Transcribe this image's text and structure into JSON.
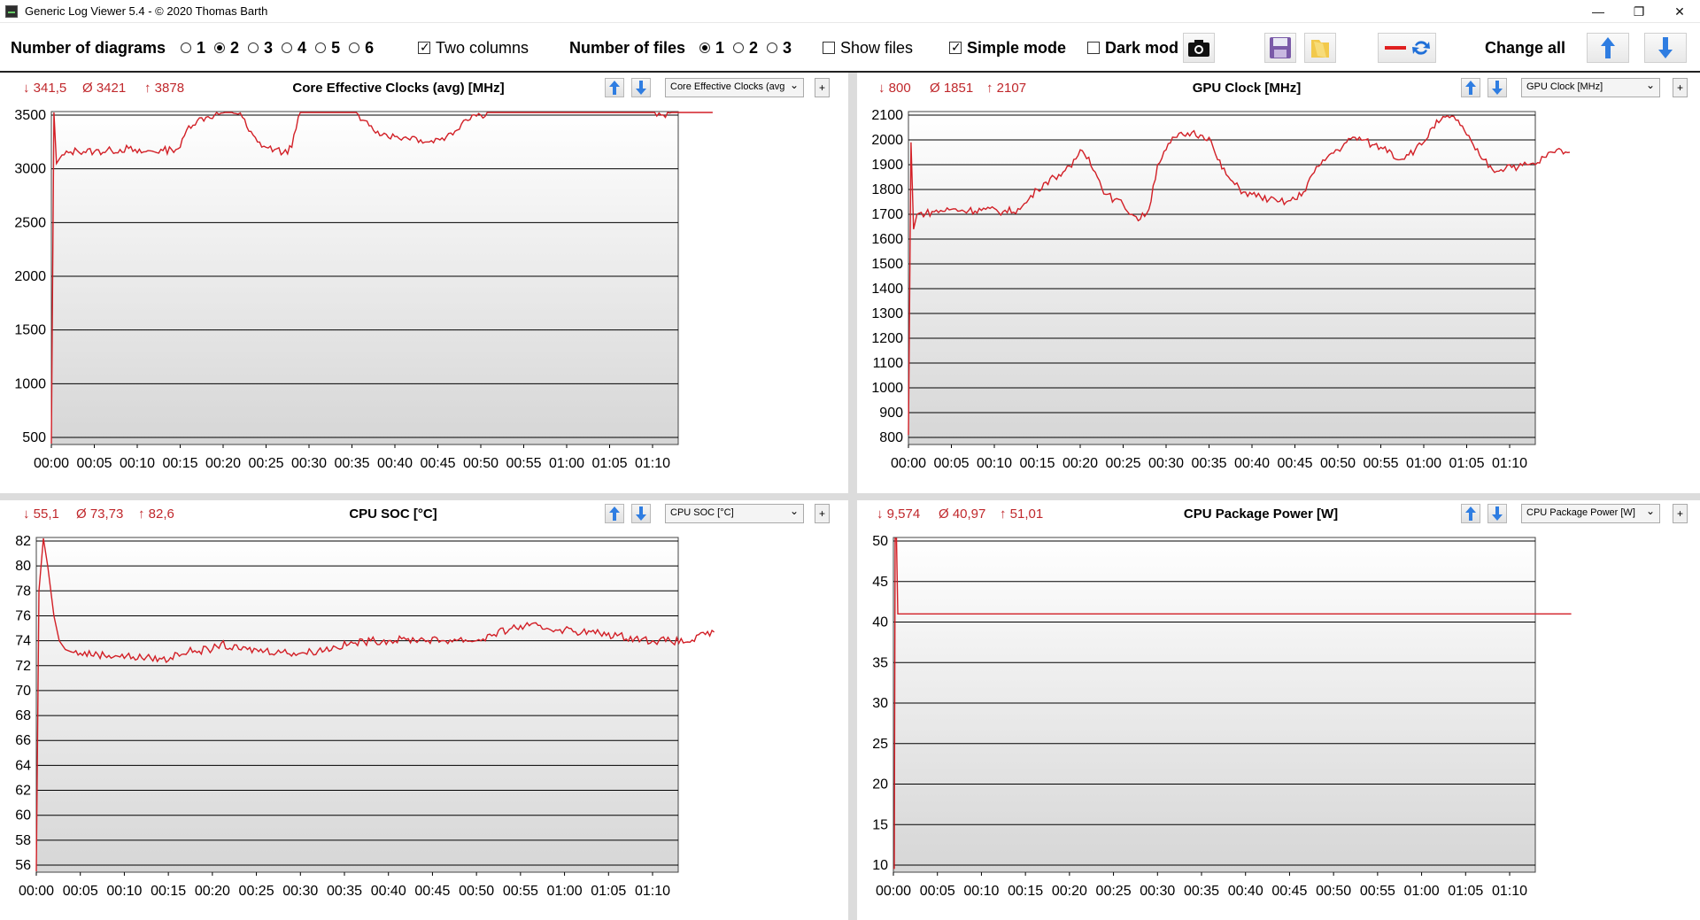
{
  "window": {
    "title": "Generic Log Viewer 5.4 - © 2020 Thomas Barth",
    "minimize": "—",
    "restore": "❐",
    "close": "✕"
  },
  "toolbar": {
    "num_diagrams_label": "Number of diagrams",
    "diagram_options": [
      "1",
      "2",
      "3",
      "4",
      "5",
      "6"
    ],
    "diagram_selected": "2",
    "two_columns_label": "Two columns",
    "two_columns_checked": true,
    "num_files_label": "Number of files",
    "file_options": [
      "1",
      "2",
      "3"
    ],
    "file_selected": "1",
    "show_files_label": "Show files",
    "show_files_checked": false,
    "simple_mode_label": "Simple mode",
    "simple_mode_checked": true,
    "dark_mode_label": "Dark mod",
    "dark_mode_checked": false,
    "change_all_label": "Change all"
  },
  "panels": [
    {
      "id": "p1",
      "min": "↓ 341,5",
      "avg": "Ø 3421",
      "max": "↑ 3878",
      "title": "Core Effective Clocks (avg) [MHz]",
      "select_value": "Core Effective Clocks (avg",
      "chart_data": {
        "type": "line",
        "title": "Core Effective Clocks (avg) [MHz]",
        "ylim": [
          341.5,
          3878
        ],
        "yticks": [
          500,
          1000,
          1500,
          2000,
          2500,
          3000,
          3500
        ],
        "xticks": [
          "00:00",
          "00:05",
          "00:10",
          "00:15",
          "00:20",
          "00:25",
          "00:30",
          "00:35",
          "00:40",
          "00:45",
          "00:50",
          "00:55",
          "01:00",
          "01:05",
          "01:10"
        ],
        "x_minutes": [
          0,
          0.3,
          0.6,
          1,
          2,
          3,
          5,
          7,
          9,
          10,
          11,
          13,
          14,
          15,
          16,
          17,
          18,
          19,
          20,
          21,
          22,
          23,
          24,
          25,
          26,
          27,
          28,
          29,
          30,
          31,
          32,
          33,
          34,
          35,
          36,
          37,
          38,
          39,
          40,
          41,
          42,
          43,
          44,
          45,
          46,
          47,
          48,
          49,
          50,
          51,
          52,
          53,
          54,
          55,
          56,
          57,
          58,
          59,
          60,
          61,
          62,
          63,
          64,
          65,
          66,
          67,
          68,
          69,
          70,
          71,
          72,
          73,
          74,
          75,
          76,
          77
        ],
        "series": [
          {
            "values": [
              400,
              3550,
              3050,
              3100,
              3150,
              3170,
              3160,
              3170,
              3190,
              3150,
              3160,
              3170,
              3180,
              3200,
              3400,
              3450,
              3480,
              3500,
              3520,
              3530,
              3520,
              3350,
              3250,
              3200,
              3180,
              3150,
              3200,
              3550,
              3680,
              3720,
              3740,
              3750,
              3700,
              3600,
              3450,
              3400,
              3350,
              3320,
              3300,
              3290,
              3300,
              3270,
              3250,
              3280,
              3300,
              3350,
              3450,
              3500,
              3500,
              3530,
              3600,
              3680,
              3720,
              3720,
              3700,
              3680,
              3690,
              3660,
              3650,
              3620,
              3650,
              3700,
              3800,
              3850,
              3870,
              3850,
              3800,
              3700,
              3550,
              3500,
              3520,
              3540,
              3560,
              3580,
              3600,
              3600
            ]
          }
        ]
      }
    },
    {
      "id": "p2",
      "min": "↓ 800",
      "avg": "Ø 1851",
      "max": "↑ 2107",
      "title": "GPU Clock [MHz]",
      "select_value": "GPU Clock [MHz]",
      "chart_data": {
        "type": "line",
        "title": "GPU Clock [MHz]",
        "ylim": [
          800,
          2107
        ],
        "yticks": [
          800,
          900,
          1000,
          1100,
          1200,
          1300,
          1400,
          1500,
          1600,
          1700,
          1800,
          1900,
          2000,
          2100
        ],
        "xticks": [
          "00:00",
          "00:05",
          "00:10",
          "00:15",
          "00:20",
          "00:25",
          "00:30",
          "00:35",
          "00:40",
          "00:45",
          "00:50",
          "00:55",
          "01:00",
          "01:05",
          "01:10"
        ],
        "x_minutes": [
          0,
          0.3,
          0.6,
          1,
          3,
          5,
          7,
          9,
          11,
          13,
          14,
          15,
          16,
          17,
          18,
          19,
          20,
          21,
          22,
          23,
          24,
          25,
          26,
          27,
          28,
          29,
          30,
          31,
          32,
          33,
          34,
          35,
          36,
          37,
          38,
          39,
          40,
          41,
          42,
          43,
          44,
          45,
          46,
          47,
          48,
          49,
          50,
          51,
          52,
          53,
          54,
          55,
          56,
          57,
          58,
          59,
          60,
          61,
          62,
          63,
          64,
          65,
          66,
          67,
          68,
          69,
          70,
          71,
          72,
          73,
          74,
          75,
          76,
          77
        ],
        "series": [
          {
            "values": [
              810,
              1990,
              1640,
              1700,
              1710,
              1720,
              1715,
              1720,
              1710,
              1720,
              1760,
              1800,
              1830,
              1850,
              1870,
              1890,
              1960,
              1930,
              1850,
              1780,
              1760,
              1740,
              1700,
              1680,
              1720,
              1900,
              1960,
              2010,
              2020,
              2030,
              2020,
              2010,
              1920,
              1860,
              1820,
              1790,
              1780,
              1770,
              1760,
              1750,
              1750,
              1760,
              1790,
              1860,
              1900,
              1940,
              1960,
              1990,
              2010,
              2000,
              1980,
              1970,
              1960,
              1920,
              1940,
              1960,
              1990,
              2050,
              2080,
              2090,
              2080,
              2020,
              1960,
              1920,
              1880,
              1880,
              1900,
              1890,
              1900,
              1900,
              1930,
              1950,
              1960,
              1950
            ]
          }
        ]
      }
    },
    {
      "id": "p3",
      "min": "↓ 55,1",
      "avg": "Ø 73,73",
      "max": "↑ 82,6",
      "title": "CPU SOC [°C]",
      "select_value": "CPU SOC [°C]",
      "chart_data": {
        "type": "line",
        "title": "CPU SOC [°C]",
        "ylim": [
          55.1,
          82.6
        ],
        "yticks": [
          56,
          58,
          60,
          62,
          64,
          66,
          68,
          70,
          72,
          74,
          76,
          78,
          80,
          82
        ],
        "xticks": [
          "00:00",
          "00:05",
          "00:10",
          "00:15",
          "00:20",
          "00:25",
          "00:30",
          "00:35",
          "00:40",
          "00:45",
          "00:50",
          "00:55",
          "01:00",
          "01:05",
          "01:10"
        ],
        "x_minutes": [
          0,
          0.3,
          0.8,
          1.3,
          2,
          2.6,
          3.3,
          4,
          5,
          7,
          9,
          11,
          13,
          14,
          15,
          16,
          18,
          20,
          21,
          22,
          24,
          26,
          28,
          30,
          32,
          34,
          36,
          38,
          40,
          42,
          44,
          46,
          48,
          50,
          52,
          54,
          56,
          58,
          60,
          62,
          64,
          66,
          68,
          70,
          72,
          74,
          76,
          77
        ],
        "series": [
          {
            "values": [
              55.1,
              78,
              82.6,
              80,
              76,
              74,
              73.3,
              73.1,
              73,
              72.9,
              72.8,
              72.7,
              72.6,
              72.6,
              72.4,
              73,
              73.2,
              73.3,
              73.8,
              73.4,
              73.3,
              73.2,
              73.1,
              73,
              73.2,
              73.5,
              73.8,
              74,
              74,
              74.1,
              74.1,
              74,
              74.1,
              74,
              74.5,
              75,
              75.2,
              75,
              74.9,
              74.7,
              74.6,
              74.4,
              74.2,
              74,
              74,
              73.9,
              74.5,
              74.7
            ]
          }
        ]
      }
    },
    {
      "id": "p4",
      "min": "↓ 9,574",
      "avg": "Ø 40,97",
      "max": "↑ 51,01",
      "title": "CPU Package Power [W]",
      "select_value": "CPU Package Power [W]",
      "chart_data": {
        "type": "line",
        "title": "CPU Package Power [W]",
        "ylim": [
          9.574,
          51.01
        ],
        "yticks": [
          10,
          15,
          20,
          25,
          30,
          35,
          40,
          45,
          50
        ],
        "xticks": [
          "00:00",
          "00:05",
          "00:10",
          "00:15",
          "00:20",
          "00:25",
          "00:30",
          "00:35",
          "00:40",
          "00:45",
          "00:50",
          "00:55",
          "01:00",
          "01:05",
          "01:10"
        ],
        "x_minutes": [
          0,
          0.1,
          0.2,
          0.35,
          0.5,
          1,
          77
        ],
        "series": [
          {
            "values": [
              9.574,
              9.6,
              51,
              51,
              41,
              41,
              41
            ]
          }
        ]
      }
    }
  ]
}
